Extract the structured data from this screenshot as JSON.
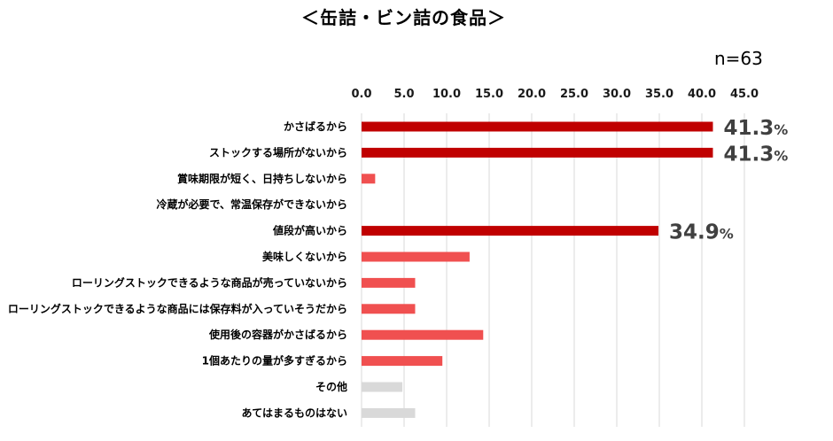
{
  "title": "＜缶詰・ビン詰の食品＞",
  "sample_size": "n=63",
  "chart_data": {
    "type": "bar",
    "orientation": "horizontal",
    "xlim": [
      0,
      45
    ],
    "ticks": [
      "0.0",
      "5.0",
      "10.0",
      "15.0",
      "20.0",
      "25.0",
      "30.0",
      "35.0",
      "40.0",
      "45.0"
    ],
    "grid": true,
    "categories": [
      "かさばるから",
      "ストックする場所がないから",
      "賞味期限が短く、日持ちしないから",
      "冷蔵が必要で、常温保存ができないから",
      "値段が高いから",
      "美味しくないから",
      "ローリングストックできるような商品が売っていないから",
      "ローリングストックできるような商品には保存料が入っていそうだから",
      "使用後の容器がかさばるから",
      "1個あたりの量が多すぎるから",
      "その他",
      "あてはまるものはない"
    ],
    "values": [
      41.3,
      41.3,
      1.6,
      0.0,
      34.9,
      12.7,
      6.3,
      6.3,
      14.3,
      9.5,
      4.8,
      6.3
    ],
    "bar_colors": [
      "#c00000",
      "#c00000",
      "#f05050",
      "#f05050",
      "#c00000",
      "#f05050",
      "#f05050",
      "#f05050",
      "#f05050",
      "#f05050",
      "#d9d9d9",
      "#d9d9d9"
    ],
    "data_labels": [
      {
        "index": 0,
        "number": "41.3",
        "unit": "%"
      },
      {
        "index": 1,
        "number": "41.3",
        "unit": "%"
      },
      {
        "index": 4,
        "number": "34.9",
        "unit": "%"
      }
    ]
  }
}
